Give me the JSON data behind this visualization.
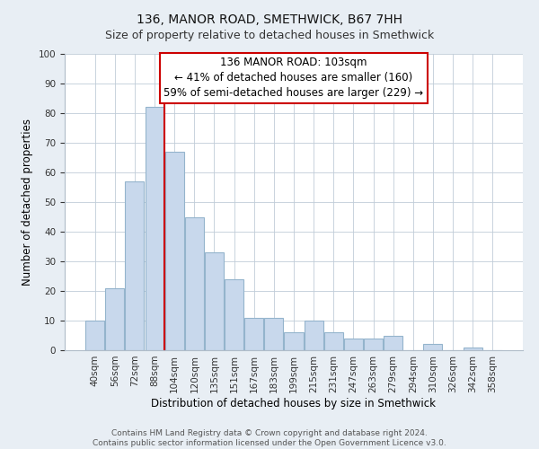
{
  "title_line1": "136, MANOR ROAD, SMETHWICK, B67 7HH",
  "title_line2": "Size of property relative to detached houses in Smethwick",
  "xlabel": "Distribution of detached houses by size in Smethwick",
  "ylabel": "Number of detached properties",
  "bar_labels": [
    "40sqm",
    "56sqm",
    "72sqm",
    "88sqm",
    "104sqm",
    "120sqm",
    "135sqm",
    "151sqm",
    "167sqm",
    "183sqm",
    "199sqm",
    "215sqm",
    "231sqm",
    "247sqm",
    "263sqm",
    "279sqm",
    "294sqm",
    "310sqm",
    "326sqm",
    "342sqm",
    "358sqm"
  ],
  "bar_values": [
    10,
    21,
    57,
    82,
    67,
    45,
    33,
    24,
    11,
    11,
    6,
    10,
    6,
    4,
    4,
    5,
    0,
    2,
    0,
    1,
    0
  ],
  "bar_color": "#c8d8ec",
  "bar_edge_color": "#94b4cc",
  "vline_index": 4,
  "vline_color": "#cc0000",
  "ylim": [
    0,
    100
  ],
  "yticks": [
    0,
    10,
    20,
    30,
    40,
    50,
    60,
    70,
    80,
    90,
    100
  ],
  "annotation_line1": "136 MANOR ROAD: 103sqm",
  "annotation_line2": "← 41% of detached houses are smaller (160)",
  "annotation_line3": "59% of semi-detached houses are larger (229) →",
  "footer_line1": "Contains HM Land Registry data © Crown copyright and database right 2024.",
  "footer_line2": "Contains public sector information licensed under the Open Government Licence v3.0.",
  "background_color": "#e8eef4",
  "plot_background_color": "#ffffff",
  "grid_color": "#c0ccd8",
  "title1_fontsize": 10,
  "title2_fontsize": 9,
  "axis_label_fontsize": 8.5,
  "tick_fontsize": 7.5,
  "annotation_fontsize": 8.5,
  "footer_fontsize": 6.5
}
